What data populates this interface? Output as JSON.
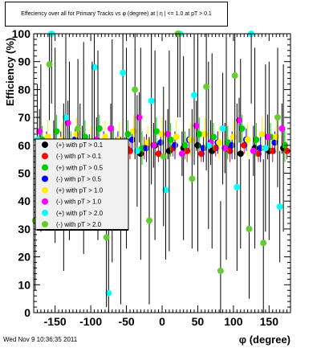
{
  "title": "Effeciency over all for Primary Tracks vs φ (degree) at | η | <= 1.0 at pT > 0.1",
  "footer": "Wed Nov  9 10:36:35 2011",
  "chart_data": {
    "type": "scatter",
    "title": "Effeciency over all for Primary Tracks vs φ (degree) at | η | <= 1.0 at pT > 0.1",
    "xlabel": "φ (degree)",
    "ylabel": "Efficiency (%)",
    "xlim": [
      -180,
      180
    ],
    "ylim": [
      0,
      100
    ],
    "xticks": [
      -150,
      -100,
      -50,
      0,
      50,
      100,
      150
    ],
    "yticks": [
      0,
      10,
      20,
      30,
      40,
      50,
      60,
      70,
      80,
      90,
      100
    ],
    "grid": false,
    "legend_position": "center-left",
    "series": [
      {
        "name": "(+) with pT > 0.1",
        "color": "#000000",
        "marker": "circle",
        "x": [
          -170,
          -150,
          -130,
          -110,
          -90,
          -70,
          -50,
          -30,
          -10,
          10,
          30,
          50,
          70,
          90,
          110,
          130,
          150,
          170
        ],
        "y": [
          59,
          60,
          58,
          59,
          60,
          58,
          59,
          57,
          60,
          58,
          59,
          60,
          58,
          59,
          57,
          59,
          58,
          59
        ],
        "err": [
          30,
          35,
          32,
          38,
          34,
          40,
          36,
          38,
          34,
          36,
          33,
          38,
          35,
          40,
          34,
          36,
          32,
          30
        ]
      },
      {
        "name": "(-) with pT > 0.1",
        "color": "#ff0000",
        "marker": "circle",
        "x": [
          -165,
          -145,
          -125,
          -105,
          -85,
          -65,
          -45,
          -25,
          -5,
          15,
          35,
          55,
          75,
          95,
          115,
          135,
          155,
          175
        ],
        "y": [
          58,
          59,
          59,
          57,
          58,
          60,
          58,
          59,
          57,
          59,
          58,
          57,
          59,
          58,
          60,
          57,
          58,
          58
        ],
        "err": [
          3,
          3,
          4,
          3,
          4,
          3,
          3,
          4,
          3,
          3,
          4,
          3,
          3,
          4,
          3,
          3,
          4,
          3
        ]
      },
      {
        "name": "(+) with pT > 0.5",
        "color": "#00cc00",
        "marker": "circle",
        "x": [
          -168,
          -148,
          -128,
          -108,
          -88,
          -68,
          -48,
          -28,
          -8,
          12,
          32,
          52,
          72,
          92,
          112,
          132,
          152,
          172
        ],
        "y": [
          62,
          65,
          60,
          63,
          66,
          61,
          64,
          59,
          65,
          62,
          60,
          64,
          63,
          61,
          66,
          62,
          63,
          60
        ],
        "err": [
          5,
          6,
          5,
          6,
          5,
          6,
          5,
          6,
          5,
          6,
          5,
          6,
          5,
          6,
          5,
          6,
          5,
          6
        ]
      },
      {
        "name": "(-) with pT > 0.5",
        "color": "#0000ff",
        "marker": "circle",
        "x": [
          -162,
          -142,
          -122,
          -102,
          -82,
          -62,
          -42,
          -22,
          -2,
          18,
          38,
          58,
          78,
          98,
          118,
          138,
          158
        ],
        "y": [
          61,
          60,
          62,
          59,
          61,
          60,
          62,
          59,
          61,
          60,
          62,
          59,
          61,
          60,
          62,
          59,
          61
        ],
        "err": [
          4,
          5,
          4,
          5,
          4,
          5,
          4,
          5,
          4,
          5,
          4,
          5,
          4,
          5,
          4,
          5,
          4
        ]
      },
      {
        "name": "(+) with pT > 1.0",
        "color": "#ffee00",
        "marker": "circle",
        "x": [
          -160,
          -140,
          -120,
          -100,
          -80,
          -60,
          -40,
          -20,
          0,
          20,
          40,
          60,
          80,
          100,
          120,
          140,
          160
        ],
        "y": [
          63,
          62,
          64,
          61,
          63,
          62,
          65,
          61,
          64,
          63,
          62,
          64,
          61,
          63,
          62,
          64,
          63
        ],
        "err": [
          6,
          6,
          6,
          6,
          6,
          6,
          6,
          6,
          6,
          6,
          6,
          6,
          6,
          6,
          6,
          6,
          6
        ]
      },
      {
        "name": "(-) with pT > 1.0",
        "color": "#ff00ff",
        "marker": "circle",
        "x": [
          -172,
          -152,
          -132,
          -112,
          -92,
          -72,
          -52,
          -32,
          -12,
          8,
          28,
          48,
          68,
          88,
          108,
          128,
          148,
          168
        ],
        "y": [
          65,
          60,
          68,
          58,
          62,
          66,
          55,
          70,
          60,
          64,
          57,
          67,
          61,
          59,
          69,
          58,
          63,
          66
        ],
        "err": [
          8,
          9,
          8,
          9,
          8,
          9,
          8,
          9,
          8,
          9,
          8,
          9,
          8,
          9,
          8,
          9,
          8,
          9
        ]
      },
      {
        "name": "(+) with pT > 2.0",
        "color": "#00ffff",
        "marker": "circle",
        "x": [
          -175,
          -155,
          -135,
          -115,
          -95,
          -75,
          -55,
          -35,
          -15,
          5,
          25,
          45,
          65,
          85,
          105,
          125,
          145,
          165
        ],
        "y": [
          62,
          100,
          70,
          55,
          88,
          7,
          86,
          58,
          76,
          44,
          100,
          78,
          60,
          66,
          45,
          100,
          59,
          38
        ],
        "err": [
          20,
          25,
          30,
          20,
          35,
          25,
          30,
          20,
          30,
          25,
          30,
          25,
          30,
          20,
          30,
          25,
          30,
          20
        ]
      },
      {
        "name": "(-) with pT > 2.0",
        "color": "#66cc33",
        "marker": "circle",
        "x": [
          -178,
          -158,
          -138,
          -118,
          -98,
          -78,
          -58,
          -38,
          -18,
          2,
          22,
          42,
          62,
          82,
          102,
          122,
          142,
          162
        ],
        "y": [
          33,
          89,
          45,
          66,
          60,
          27,
          33,
          80,
          33,
          56,
          100,
          48,
          81,
          15,
          85,
          30,
          25,
          70
        ],
        "err": [
          25,
          20,
          30,
          25,
          30,
          25,
          30,
          25,
          30,
          25,
          30,
          25,
          30,
          25,
          30,
          25,
          30,
          25
        ]
      }
    ]
  }
}
